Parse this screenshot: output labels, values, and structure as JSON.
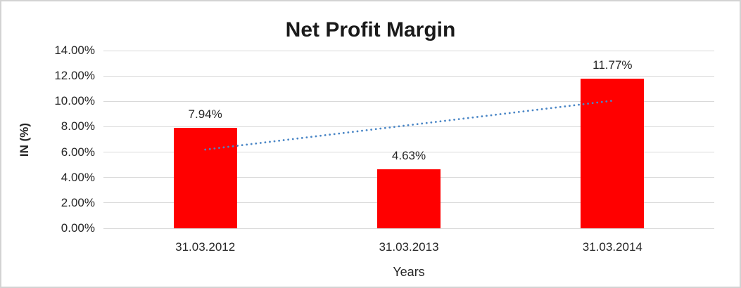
{
  "chart_data": {
    "type": "bar",
    "title": "Net Profit Margin",
    "xlabel": "Years",
    "ylabel": "IN (%)",
    "categories": [
      "31.03.2012",
      "31.03.2013",
      "31.03.2014"
    ],
    "values": [
      7.94,
      4.63,
      11.77
    ],
    "value_labels": [
      "7.94%",
      "4.63%",
      "11.77%"
    ],
    "ylim": [
      0,
      14
    ],
    "ytick_step": 2,
    "yticks": [
      {
        "value": 0,
        "label": "0.00%"
      },
      {
        "value": 2,
        "label": "2.00%"
      },
      {
        "value": 4,
        "label": "4.00%"
      },
      {
        "value": 6,
        "label": "6.00%"
      },
      {
        "value": 8,
        "label": "8.00%"
      },
      {
        "value": 10,
        "label": "10.00%"
      },
      {
        "value": 12,
        "label": "12.00%"
      },
      {
        "value": 14,
        "label": "14.00%"
      }
    ],
    "grid": true,
    "legend": "none",
    "bar_color": "#ff0000",
    "gridline_color": "#d9d9d9",
    "text_color": "#262626",
    "trendline": {
      "type": "linear",
      "style": "dotted",
      "color": "#4a86c6",
      "start_value": 6.2,
      "end_value": 10.05
    }
  }
}
